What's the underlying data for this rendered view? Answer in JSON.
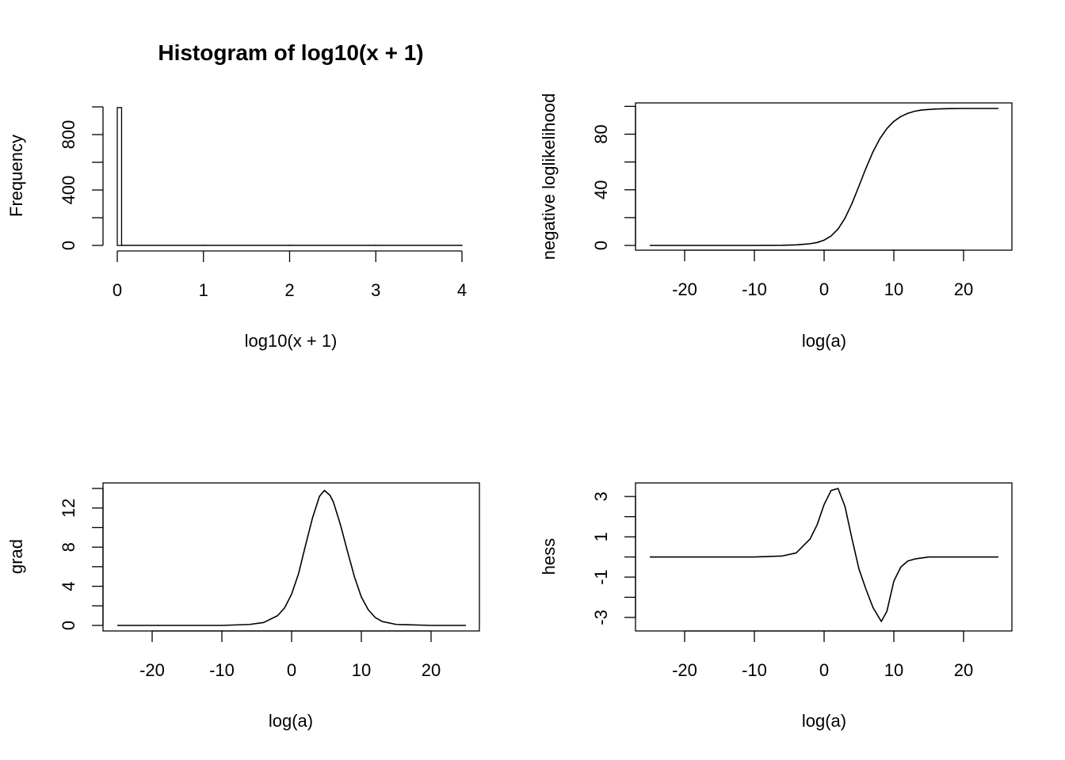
{
  "chart_data": [
    {
      "type": "bar",
      "subtype": "histogram",
      "title": "Histogram of log10(x + 1)",
      "xlabel": "log10(x + 1)",
      "ylabel": "Frequency",
      "xlim": [
        0,
        4
      ],
      "ylim": [
        0,
        1000
      ],
      "xticks": [
        "0",
        "1",
        "2",
        "3",
        "4"
      ],
      "yticks": [
        "0",
        "400",
        "800"
      ],
      "bins": [
        {
          "start": 0.0,
          "end": 0.05,
          "count": 995
        },
        {
          "start": 0.05,
          "end": 1.0,
          "count": 1
        },
        {
          "start": 1.0,
          "end": 2.0,
          "count": 1
        },
        {
          "start": 2.0,
          "end": 3.0,
          "count": 1
        },
        {
          "start": 3.0,
          "end": 4.0,
          "count": 1
        }
      ],
      "grid": false
    },
    {
      "type": "line",
      "title": "",
      "xlabel": "log(a)",
      "ylabel": "negative loglikelihood",
      "xlim": [
        -25,
        25
      ],
      "ylim": [
        0,
        98.5
      ],
      "xticks": [
        "-20",
        "-10",
        "0",
        "10",
        "20"
      ],
      "yticks": [
        "0",
        "40",
        "80"
      ],
      "x": [
        -25,
        -20,
        -15,
        -10,
        -6,
        -4,
        -2,
        -1,
        0,
        1,
        2,
        3,
        4,
        5,
        6,
        7,
        8,
        9,
        10,
        11,
        12,
        13,
        14,
        16,
        18,
        20,
        25
      ],
      "y": [
        0.0,
        0.0,
        0.0,
        0.0,
        0.1,
        0.4,
        1.2,
        2.1,
        3.8,
        6.8,
        11.8,
        19.6,
        30.2,
        42.7,
        55.5,
        67.2,
        76.8,
        84.0,
        89.2,
        92.7,
        95.0,
        96.5,
        97.4,
        98.1,
        98.4,
        98.5,
        98.5
      ],
      "grid": false
    },
    {
      "type": "line",
      "title": "",
      "xlabel": "log(a)",
      "ylabel": "grad",
      "xlim": [
        -25,
        25
      ],
      "ylim": [
        0,
        14
      ],
      "xticks": [
        "-20",
        "-10",
        "0",
        "10",
        "20"
      ],
      "yticks": [
        "0",
        "4",
        "8",
        "12"
      ],
      "x": [
        -25,
        -20,
        -10,
        -6,
        -4,
        -2,
        -1,
        0,
        1,
        2,
        3,
        4,
        4.7,
        5.5,
        6,
        7,
        8,
        9,
        10,
        11,
        12,
        13,
        15,
        20,
        25
      ],
      "y": [
        0.0,
        0.0,
        0.0,
        0.1,
        0.3,
        1.0,
        1.8,
        3.2,
        5.3,
        8.2,
        11.0,
        13.2,
        13.8,
        13.3,
        12.6,
        10.3,
        7.6,
        5.0,
        2.9,
        1.6,
        0.8,
        0.4,
        0.1,
        0.0,
        0.0
      ],
      "grid": false
    },
    {
      "type": "line",
      "title": "",
      "xlabel": "log(a)",
      "ylabel": "hess",
      "xlim": [
        -25,
        25
      ],
      "ylim": [
        -3.2,
        3.4
      ],
      "xticks": [
        "-20",
        "-10",
        "0",
        "10",
        "20"
      ],
      "yticks": [
        "-3",
        "-1",
        "1",
        "3"
      ],
      "x": [
        -25,
        -20,
        -10,
        -6,
        -4,
        -2,
        -1,
        0,
        1,
        2,
        3,
        4,
        5,
        6,
        7,
        8.2,
        9,
        10,
        11,
        12,
        13,
        15,
        20,
        25
      ],
      "y": [
        0.0,
        0.0,
        0.0,
        0.05,
        0.2,
        0.9,
        1.6,
        2.6,
        3.3,
        3.4,
        2.5,
        0.9,
        -0.6,
        -1.6,
        -2.5,
        -3.2,
        -2.7,
        -1.2,
        -0.5,
        -0.2,
        -0.1,
        0.0,
        0.0,
        0.0
      ],
      "grid": false
    }
  ]
}
